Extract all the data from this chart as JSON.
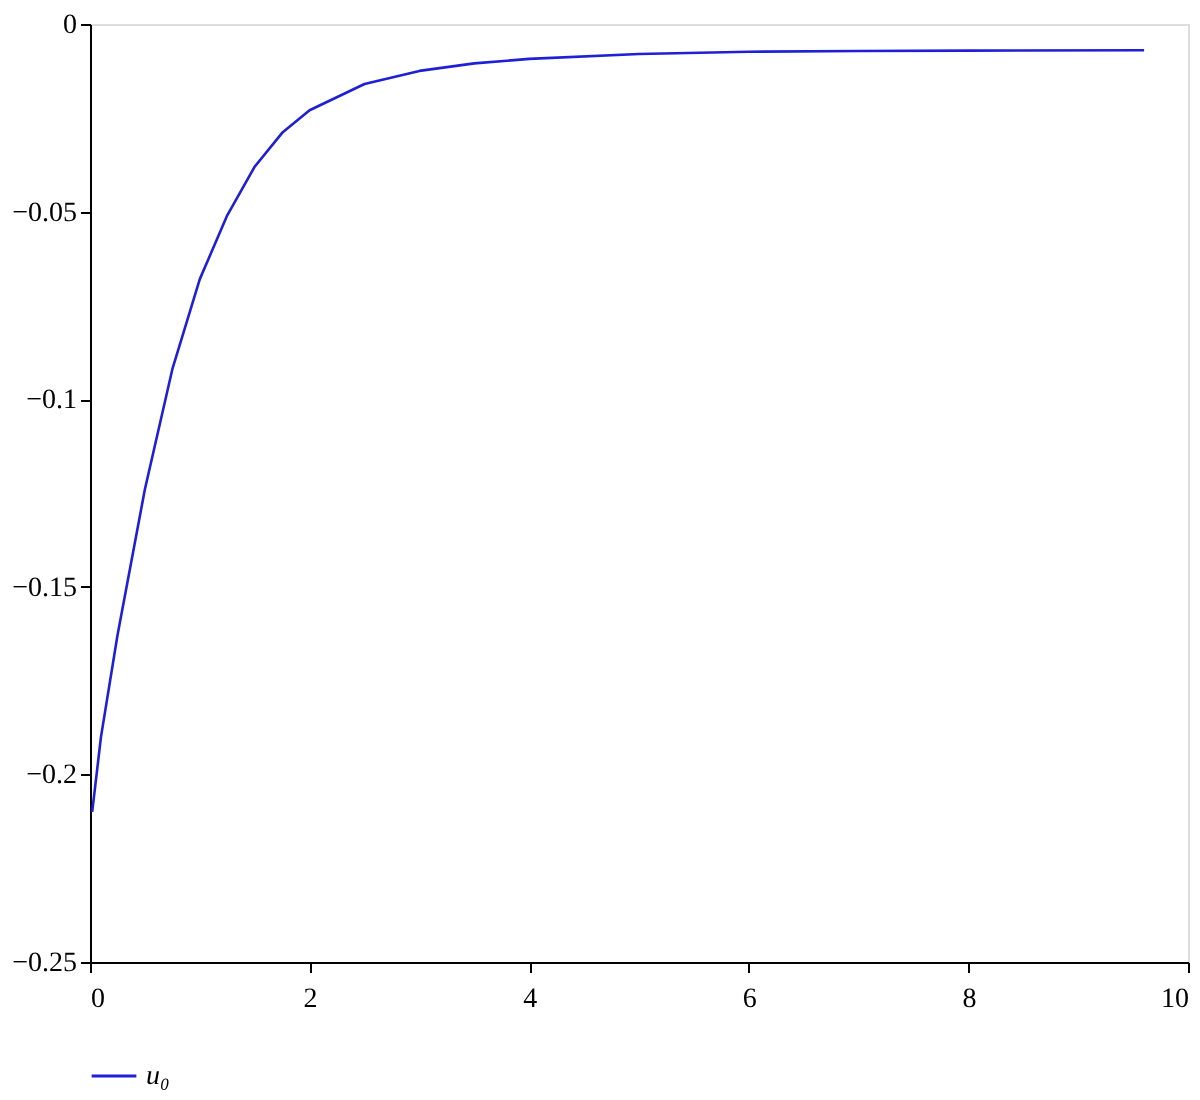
{
  "chart_data": {
    "type": "line",
    "x": [
      0.02,
      0.1,
      0.25,
      0.5,
      0.75,
      1.0,
      1.25,
      1.5,
      1.75,
      2.0,
      2.5,
      3.0,
      3.5,
      4.0,
      5.0,
      6.0,
      7.0,
      8.0,
      9.6
    ],
    "series": [
      {
        "name": "u₀",
        "color": "#1f1fd6",
        "values": [
          -0.21,
          -0.19,
          -0.163,
          -0.124,
          -0.092,
          -0.068,
          -0.051,
          -0.038,
          -0.029,
          -0.023,
          -0.016,
          -0.0125,
          -0.0105,
          -0.0093,
          -0.008,
          -0.0074,
          -0.0072,
          -0.0071,
          -0.007
        ]
      }
    ],
    "xlim": [
      0,
      10
    ],
    "xticks": [
      0,
      2,
      4,
      6,
      8,
      10
    ],
    "ylim": [
      -0.25,
      0
    ],
    "yticks": [
      {
        "value": -0.25,
        "label": "−0.25"
      },
      {
        "value": -0.2,
        "label": "−0.2"
      },
      {
        "value": -0.15,
        "label": "−0.15"
      },
      {
        "value": -0.1,
        "label": "−0.1"
      },
      {
        "value": -0.05,
        "label": "−0.05"
      },
      0
    ],
    "grid": false,
    "legend": "bottom left",
    "marker": "none",
    "line_style": "solid"
  }
}
